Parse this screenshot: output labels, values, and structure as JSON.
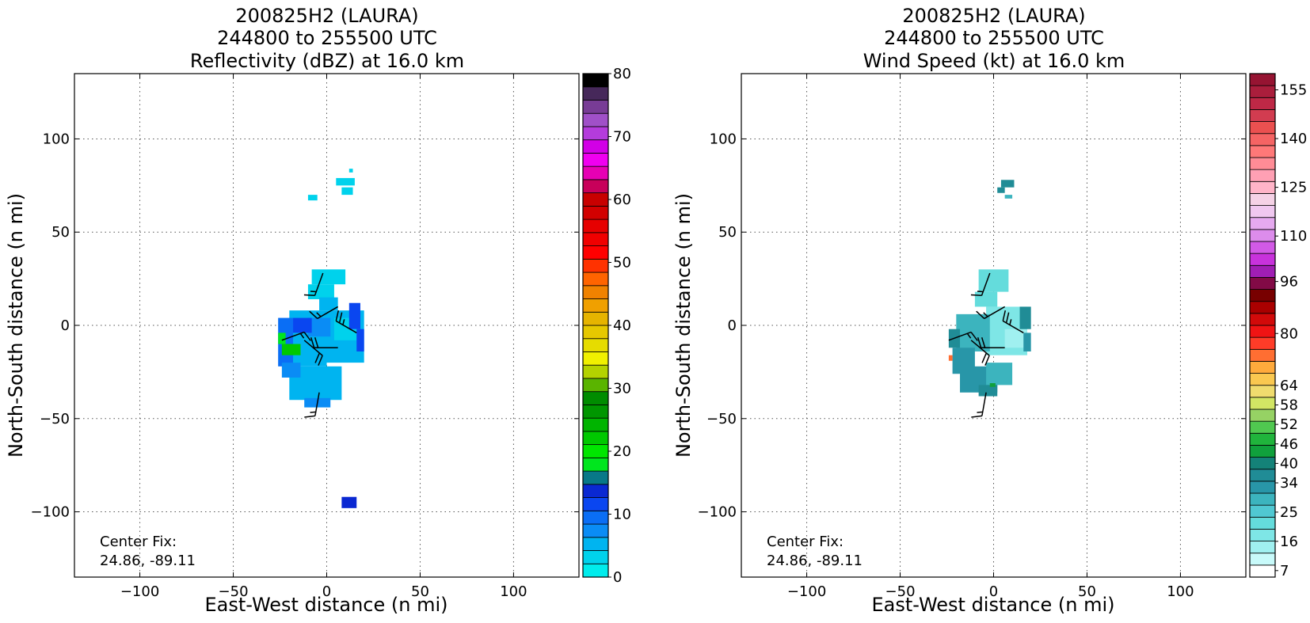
{
  "chart_data": [
    {
      "type": "heatmap",
      "title_lines": [
        "200825H2 (LAURA)",
        "244800 to 255500 UTC",
        "Reflectivity (dBZ) at 16.0 km"
      ],
      "xlabel": "East-West distance (n mi)",
      "ylabel": "North-South distance (n mi)",
      "xlim": [
        -135,
        135
      ],
      "ylim": [
        -135,
        135
      ],
      "xticks": [
        -100,
        -50,
        0,
        50,
        100
      ],
      "yticks": [
        -100,
        -50,
        0,
        50,
        100
      ],
      "xtick_labels": [
        "−100",
        "−50",
        "0",
        "50",
        "100"
      ],
      "ytick_labels": [
        "−100",
        "−50",
        "0",
        "50",
        "100"
      ],
      "grid": true,
      "annotation": {
        "line1": "Center Fix:",
        "line2": "24.86, -89.11"
      },
      "colorbar": {
        "min": 0,
        "max": 80,
        "colors": [
          "#00ecec",
          "#00d2ec",
          "#00b4f0",
          "#0a8cf5",
          "#0a6ef5",
          "#0a46f0",
          "#0a28d2",
          "#087888",
          "#00e61e",
          "#00e600",
          "#00c800",
          "#00b400",
          "#009600",
          "#008c00",
          "#5ab400",
          "#b4d200",
          "#f0f000",
          "#e6dc00",
          "#e6c800",
          "#e6b400",
          "#f0a000",
          "#f08200",
          "#ff6400",
          "#ff3200",
          "#ff0000",
          "#f00000",
          "#e60000",
          "#d20000",
          "#c80000",
          "#c8005a",
          "#e600b4",
          "#f000f0",
          "#d200e6",
          "#b43cdc",
          "#a050c8",
          "#783c96",
          "#46285a",
          "#000000"
        ],
        "tick_values": [
          0,
          10,
          20,
          30,
          40,
          50,
          60,
          70,
          80
        ],
        "tick_labels": [
          "0",
          "10",
          "20",
          "30",
          "40",
          "50",
          "60",
          "70",
          "80"
        ]
      },
      "echo_cells": [
        {
          "x": 5,
          "y": 75,
          "w": 10,
          "h": 4,
          "color": "#00d2ec"
        },
        {
          "x": 8,
          "y": 70,
          "w": 6,
          "h": 4,
          "color": "#00d2ec"
        },
        {
          "x": -10,
          "y": 67,
          "w": 5,
          "h": 3,
          "color": "#00d2ec"
        },
        {
          "x": 12,
          "y": 82,
          "w": 2,
          "h": 2,
          "color": "#00d2ec"
        },
        {
          "x": -8,
          "y": 22,
          "w": 18,
          "h": 8,
          "color": "#00d2ec"
        },
        {
          "x": -10,
          "y": 14,
          "w": 14,
          "h": 8,
          "color": "#00d2ec"
        },
        {
          "x": -4,
          "y": 8,
          "w": 10,
          "h": 7,
          "color": "#00b4f0"
        },
        {
          "x": 0,
          "y": -20,
          "w": 20,
          "h": 28,
          "color": "#00b4f0"
        },
        {
          "x": -20,
          "y": -22,
          "w": 20,
          "h": 30,
          "color": "#00b4f0"
        },
        {
          "x": -20,
          "y": -40,
          "w": 28,
          "h": 18,
          "color": "#00b4f0"
        },
        {
          "x": -12,
          "y": -44,
          "w": 14,
          "h": 5,
          "color": "#0a8cf5"
        },
        {
          "x": 4,
          "y": -8,
          "w": 12,
          "h": 12,
          "color": "#00d2ec"
        },
        {
          "x": -10,
          "y": -6,
          "w": 12,
          "h": 10,
          "color": "#0a8cf5"
        },
        {
          "x": -26,
          "y": -22,
          "w": 8,
          "h": 26,
          "color": "#0a6ef5"
        },
        {
          "x": -18,
          "y": -4,
          "w": 10,
          "h": 8,
          "color": "#0a46f0"
        },
        {
          "x": -24,
          "y": -28,
          "w": 10,
          "h": 8,
          "color": "#0a8cf5"
        },
        {
          "x": 12,
          "y": -2,
          "w": 6,
          "h": 14,
          "color": "#0a46f0"
        },
        {
          "x": 16,
          "y": -14,
          "w": 4,
          "h": 12,
          "color": "#0a46f0"
        },
        {
          "x": -26,
          "y": -10,
          "w": 4,
          "h": 6,
          "color": "#00e61e"
        },
        {
          "x": -24,
          "y": -16,
          "w": 10,
          "h": 6,
          "color": "#00c800"
        },
        {
          "x": 8,
          "y": -98,
          "w": 8,
          "h": 6,
          "color": "#0a28d2"
        }
      ],
      "wind_barbs": [
        {
          "x": -2,
          "y": 28,
          "dir": 200,
          "speed": 15
        },
        {
          "x": 6,
          "y": 10,
          "dir": 240,
          "speed": 15
        },
        {
          "x": 16,
          "y": -4,
          "dir": 300,
          "speed": 25
        },
        {
          "x": 6,
          "y": -12,
          "dir": 270,
          "speed": 20
        },
        {
          "x": -4,
          "y": -36,
          "dir": 190,
          "speed": 15
        },
        {
          "x": -12,
          "y": -8,
          "dir": 130,
          "speed": 20
        },
        {
          "x": -24,
          "y": -8,
          "dir": 70,
          "speed": 15
        }
      ]
    },
    {
      "type": "heatmap",
      "title_lines": [
        "200825H2 (LAURA)",
        "244800 to 255500 UTC",
        "Wind Speed (kt) at 16.0 km"
      ],
      "xlabel": "East-West distance (n mi)",
      "ylabel": "North-South distance (n mi)",
      "xlim": [
        -135,
        135
      ],
      "ylim": [
        -135,
        135
      ],
      "xticks": [
        -100,
        -50,
        0,
        50,
        100
      ],
      "yticks": [
        -100,
        -50,
        0,
        50,
        100
      ],
      "xtick_labels": [
        "−100",
        "−50",
        "0",
        "50",
        "100"
      ],
      "ytick_labels": [
        "−100",
        "−50",
        "0",
        "50",
        "100"
      ],
      "grid": true,
      "annotation": {
        "line1": "Center Fix:",
        "line2": "24.86, -89.11"
      },
      "colorbar": {
        "min": 5,
        "max": 160,
        "colors": [
          "#ffffff",
          "#c8fafa",
          "#a0f0f0",
          "#7ee6e6",
          "#64dcdc",
          "#50c8d2",
          "#3cb4be",
          "#2896a8",
          "#208c96",
          "#148278",
          "#10a03c",
          "#20b43c",
          "#50c850",
          "#96d264",
          "#d2e664",
          "#f0dc6e",
          "#fac850",
          "#ffaa3c",
          "#ff6e32",
          "#ff3c28",
          "#f01414",
          "#d20a0a",
          "#aa0000",
          "#780000",
          "#820a46",
          "#a01eb4",
          "#c832dc",
          "#d25ae6",
          "#dc8ceb",
          "#e6aaf0",
          "#f0c8f0",
          "#f5d2e6",
          "#ffb4c8",
          "#ffa0b4",
          "#ff8c96",
          "#ff7878",
          "#f56464",
          "#eb5050",
          "#d23c50",
          "#be2846",
          "#aa1e3c",
          "#961432"
        ],
        "tick_values": [
          7,
          16,
          25,
          34,
          40,
          46,
          52,
          58,
          64,
          80,
          96,
          110,
          125,
          140,
          155
        ],
        "tick_labels": [
          "7",
          "16",
          "25",
          "34",
          "40",
          "46",
          "52",
          "58",
          "64",
          "80",
          "96",
          "110",
          "125",
          "140",
          "155"
        ]
      },
      "echo_cells": [
        {
          "x": 4,
          "y": 74,
          "w": 7,
          "h": 4,
          "color": "#208c96"
        },
        {
          "x": 2,
          "y": 71,
          "w": 4,
          "h": 3,
          "color": "#208c96"
        },
        {
          "x": 6,
          "y": 68,
          "w": 4,
          "h": 2,
          "color": "#3cb4be"
        },
        {
          "x": -8,
          "y": 18,
          "w": 16,
          "h": 12,
          "color": "#64dcdc"
        },
        {
          "x": -10,
          "y": 10,
          "w": 12,
          "h": 8,
          "color": "#64dcdc"
        },
        {
          "x": -4,
          "y": -16,
          "w": 22,
          "h": 26,
          "color": "#7ee6e6"
        },
        {
          "x": 6,
          "y": -12,
          "w": 12,
          "h": 10,
          "color": "#a0f0f0"
        },
        {
          "x": -20,
          "y": -14,
          "w": 18,
          "h": 20,
          "color": "#3cb4be"
        },
        {
          "x": -22,
          "y": -26,
          "w": 12,
          "h": 14,
          "color": "#2896a8"
        },
        {
          "x": -18,
          "y": -36,
          "w": 20,
          "h": 14,
          "color": "#2896a8"
        },
        {
          "x": -4,
          "y": -32,
          "w": 14,
          "h": 12,
          "color": "#3cb4be"
        },
        {
          "x": -8,
          "y": -38,
          "w": 10,
          "h": 6,
          "color": "#208c96"
        },
        {
          "x": 14,
          "y": -2,
          "w": 6,
          "h": 12,
          "color": "#208c96"
        },
        {
          "x": 16,
          "y": -14,
          "w": 4,
          "h": 10,
          "color": "#2896a8"
        },
        {
          "x": -24,
          "y": -12,
          "w": 6,
          "h": 10,
          "color": "#208c96"
        },
        {
          "x": -2,
          "y": -33,
          "w": 3,
          "h": 2,
          "color": "#10a03c"
        },
        {
          "x": -24,
          "y": -19,
          "w": 2,
          "h": 3,
          "color": "#ff6e32"
        }
      ],
      "wind_barbs": [
        {
          "x": -2,
          "y": 28,
          "dir": 200,
          "speed": 15
        },
        {
          "x": 6,
          "y": 10,
          "dir": 240,
          "speed": 15
        },
        {
          "x": 16,
          "y": -4,
          "dir": 300,
          "speed": 25
        },
        {
          "x": 6,
          "y": -12,
          "dir": 270,
          "speed": 20
        },
        {
          "x": -4,
          "y": -36,
          "dir": 190,
          "speed": 15
        },
        {
          "x": -12,
          "y": -8,
          "dir": 130,
          "speed": 20
        },
        {
          "x": -24,
          "y": -8,
          "dir": 70,
          "speed": 15
        }
      ]
    }
  ]
}
